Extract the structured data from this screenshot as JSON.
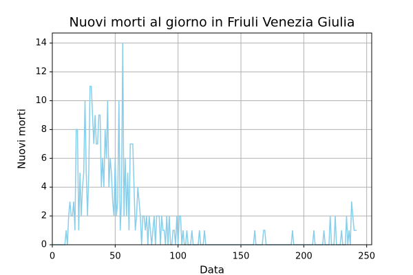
{
  "chart_data": {
    "type": "line",
    "title": "Nuovi morti al giorno in Friuli Venezia Giulia",
    "x_label": "Data",
    "y_label": "Nuovi morti",
    "x": [
      0,
      1,
      2,
      3,
      4,
      5,
      6,
      7,
      8,
      9,
      10,
      11,
      12,
      13,
      14,
      15,
      16,
      17,
      18,
      19,
      20,
      21,
      22,
      23,
      24,
      25,
      26,
      27,
      28,
      29,
      30,
      31,
      32,
      33,
      34,
      35,
      36,
      37,
      38,
      39,
      40,
      41,
      42,
      43,
      44,
      45,
      46,
      47,
      48,
      49,
      50,
      51,
      52,
      53,
      54,
      55,
      56,
      57,
      58,
      59,
      60,
      61,
      62,
      63,
      64,
      65,
      66,
      67,
      68,
      69,
      70,
      71,
      72,
      73,
      74,
      75,
      76,
      77,
      78,
      79,
      80,
      81,
      82,
      83,
      84,
      85,
      86,
      87,
      88,
      89,
      90,
      91,
      92,
      93,
      94,
      95,
      96,
      97,
      98,
      99,
      100,
      101,
      102,
      103,
      104,
      105,
      106,
      107,
      108,
      109,
      110,
      111,
      112,
      113,
      114,
      115,
      116,
      117,
      118,
      119,
      120,
      121,
      122,
      123,
      124,
      125,
      126,
      127,
      128,
      129,
      130,
      131,
      132,
      133,
      134,
      135,
      136,
      137,
      138,
      139,
      140,
      141,
      142,
      143,
      144,
      145,
      146,
      147,
      148,
      149,
      150,
      151,
      152,
      153,
      154,
      155,
      156,
      157,
      158,
      159,
      160,
      161,
      162,
      163,
      164,
      165,
      166,
      167,
      168,
      169,
      170,
      171,
      172,
      173,
      174,
      175,
      176,
      177,
      178,
      179,
      180,
      181,
      182,
      183,
      184,
      185,
      186,
      187,
      188,
      189,
      190,
      191,
      192,
      193,
      194,
      195,
      196,
      197,
      198,
      199,
      200,
      201,
      202,
      203,
      204,
      205,
      206,
      207,
      208,
      209,
      210,
      211,
      212,
      213,
      214,
      215,
      216,
      217,
      218,
      219,
      220,
      221,
      222,
      223,
      224,
      225,
      226,
      227,
      228,
      229,
      230,
      231,
      232,
      233,
      234,
      235,
      236,
      237,
      238,
      239,
      240,
      241,
      242
    ],
    "series": [
      {
        "name": "Nuovi morti",
        "color": "#87ceeb",
        "values": [
          0,
          0,
          0,
          0,
          0,
          0,
          0,
          0,
          0,
          0,
          0,
          1,
          0,
          2,
          3,
          2,
          2,
          3,
          1,
          8,
          8,
          1,
          5,
          2,
          4,
          5,
          10,
          5,
          2,
          5,
          11,
          11,
          9,
          7,
          9,
          7,
          7,
          9,
          9,
          4,
          6,
          4,
          8,
          6,
          10,
          4,
          6,
          5,
          3,
          2,
          6,
          2,
          3,
          10,
          1,
          3,
          14,
          2,
          6,
          2,
          5,
          1,
          7,
          7,
          7,
          4,
          1,
          2,
          4,
          3,
          2,
          0,
          2,
          2,
          1,
          2,
          0,
          2,
          1,
          0,
          1,
          2,
          0,
          2,
          2,
          2,
          0,
          2,
          1,
          1,
          0,
          2,
          0,
          2,
          0,
          0,
          1,
          1,
          0,
          2,
          0,
          2,
          2,
          0,
          1,
          0,
          0,
          1,
          0,
          0,
          0,
          1,
          0,
          0,
          0,
          0,
          0,
          1,
          0,
          0,
          0,
          1,
          0,
          0,
          0,
          0,
          0,
          0,
          0,
          0,
          0,
          0,
          0,
          0,
          0,
          0,
          0,
          0,
          0,
          0,
          0,
          0,
          0,
          0,
          0,
          0,
          0,
          0,
          0,
          0,
          0,
          0,
          0,
          0,
          0,
          0,
          0,
          0,
          0,
          0,
          0,
          1,
          0,
          0,
          0,
          0,
          0,
          0,
          1,
          1,
          0,
          0,
          0,
          0,
          0,
          0,
          0,
          0,
          0,
          0,
          0,
          0,
          0,
          0,
          0,
          0,
          0,
          0,
          0,
          0,
          0,
          1,
          0,
          0,
          0,
          0,
          0,
          0,
          0,
          0,
          0,
          0,
          0,
          0,
          0,
          0,
          0,
          0,
          1,
          0,
          0,
          0,
          0,
          0,
          0,
          0,
          1,
          0,
          0,
          0,
          0,
          2,
          0,
          0,
          0,
          2,
          0,
          0,
          0,
          0,
          1,
          0,
          0,
          0,
          2,
          0,
          1,
          0,
          3,
          2,
          1,
          1,
          1
        ]
      }
    ],
    "xlim": [
      0,
      254
    ],
    "ylim": [
      0,
      14.7
    ],
    "xticks": [
      0,
      50,
      100,
      150,
      200,
      250
    ],
    "yticks": [
      0,
      2,
      4,
      6,
      8,
      10,
      12,
      14
    ],
    "grid": true
  }
}
